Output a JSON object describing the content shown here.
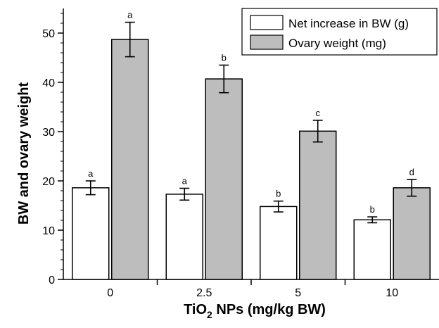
{
  "chart_data": {
    "type": "bar",
    "categories": [
      "0",
      "2.5",
      "5",
      "10"
    ],
    "series": [
      {
        "name": "Net increase in BW (g)",
        "color": "#ffffff",
        "values": [
          18.6,
          17.3,
          14.8,
          12.1
        ],
        "errors": [
          1.4,
          1.2,
          1.1,
          0.6
        ],
        "labels": [
          "a",
          "a",
          "b",
          "b"
        ]
      },
      {
        "name": "Ovary weight (mg)",
        "color": "#bdbdbd",
        "values": [
          48.7,
          40.7,
          30.1,
          18.6
        ],
        "errors": [
          3.5,
          2.8,
          2.2,
          1.7
        ],
        "labels": [
          "a",
          "b",
          "c",
          "d"
        ]
      }
    ],
    "ylabel": "BW and ovary weight",
    "xlabel_main": "TiO",
    "xlabel_sub": "2",
    "xlabel_rest": " NPs (mg/kg BW)",
    "ylim": [
      0,
      55
    ],
    "yticks": [
      "0",
      "10",
      "20",
      "30",
      "40",
      "50"
    ],
    "legend_position": "top-right",
    "grid": false
  }
}
